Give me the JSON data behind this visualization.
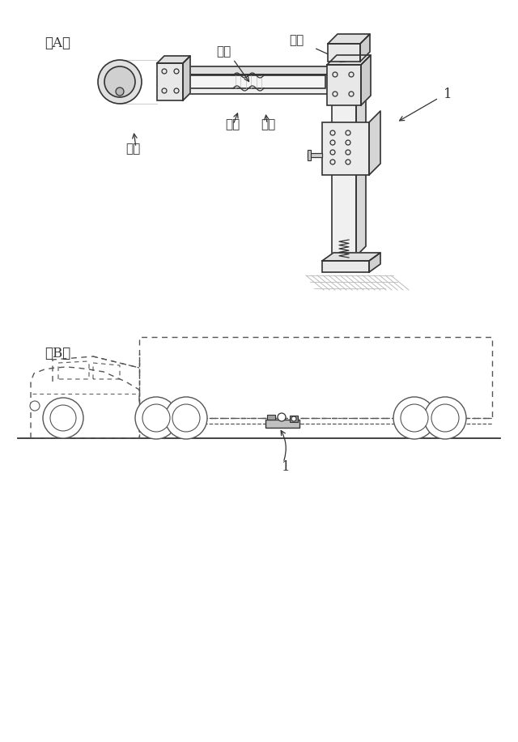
{
  "bg_color": "#ffffff",
  "line_color": "#333333",
  "dashed_color": "#555555",
  "label_A": "（A）",
  "label_B": "（B）",
  "label_1": "1",
  "label_30": "３０",
  "label_31": "３１",
  "label_32": "３２",
  "label_33a": "３３",
  "label_33b": "３３",
  "fig_width": 6.4,
  "fig_height": 9.16,
  "dpi": 100
}
